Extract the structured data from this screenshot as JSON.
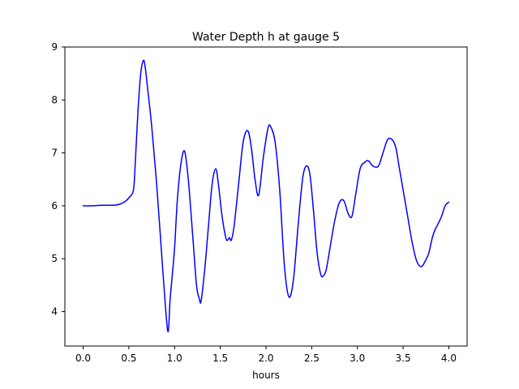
{
  "chart_data": {
    "type": "line",
    "title": "Water Depth h at gauge 5",
    "xlabel": "hours",
    "ylabel": "",
    "xlim": [
      -0.2,
      4.2
    ],
    "ylim": [
      3.35,
      9.0
    ],
    "xticks": [
      0.0,
      0.5,
      1.0,
      1.5,
      2.0,
      2.5,
      3.0,
      3.5,
      4.0
    ],
    "xtick_labels": [
      "0.0",
      "0.5",
      "1.0",
      "1.5",
      "2.0",
      "2.5",
      "3.0",
      "3.5",
      "4.0"
    ],
    "yticks": [
      4,
      5,
      6,
      7,
      8,
      9
    ],
    "ytick_labels": [
      "4",
      "5",
      "6",
      "7",
      "8",
      "9"
    ],
    "grid": false,
    "series": [
      {
        "color": "#0000ff",
        "x": [
          0.0,
          0.1,
          0.2,
          0.3,
          0.38,
          0.45,
          0.5,
          0.55,
          0.57,
          0.6,
          0.63,
          0.66,
          0.68,
          0.7,
          0.75,
          0.8,
          0.85,
          0.9,
          0.93,
          0.95,
          0.97,
          1.0,
          1.03,
          1.07,
          1.11,
          1.15,
          1.2,
          1.24,
          1.27,
          1.29,
          1.33,
          1.37,
          1.41,
          1.45,
          1.48,
          1.52,
          1.56,
          1.58,
          1.6,
          1.62,
          1.65,
          1.7,
          1.75,
          1.8,
          1.84,
          1.88,
          1.92,
          1.97,
          2.02,
          2.05,
          2.1,
          2.15,
          2.2,
          2.25,
          2.3,
          2.35,
          2.4,
          2.44,
          2.48,
          2.52,
          2.56,
          2.6,
          2.63,
          2.66,
          2.7,
          2.75,
          2.8,
          2.85,
          2.9,
          2.94,
          2.98,
          3.03,
          3.08,
          3.12,
          3.17,
          3.23,
          3.28,
          3.33,
          3.38,
          3.42,
          3.46,
          3.5,
          3.55,
          3.6,
          3.65,
          3.7,
          3.74,
          3.78,
          3.82,
          3.85,
          3.88,
          3.92,
          3.96,
          4.0
        ],
        "y": [
          6.0,
          6.0,
          6.01,
          6.01,
          6.02,
          6.07,
          6.15,
          6.3,
          6.8,
          7.8,
          8.5,
          8.75,
          8.6,
          8.3,
          7.5,
          6.5,
          5.3,
          4.1,
          3.62,
          4.2,
          4.6,
          5.2,
          6.1,
          6.8,
          7.03,
          6.5,
          5.4,
          4.5,
          4.25,
          4.2,
          4.8,
          5.6,
          6.4,
          6.7,
          6.4,
          5.8,
          5.4,
          5.35,
          5.4,
          5.35,
          5.6,
          6.4,
          7.2,
          7.42,
          7.1,
          6.5,
          6.2,
          6.9,
          7.45,
          7.5,
          7.2,
          6.3,
          4.9,
          4.28,
          4.6,
          5.6,
          6.5,
          6.75,
          6.6,
          5.9,
          5.1,
          4.7,
          4.68,
          4.8,
          5.2,
          5.7,
          6.05,
          6.1,
          5.85,
          5.8,
          6.2,
          6.7,
          6.82,
          6.85,
          6.75,
          6.75,
          7.0,
          7.25,
          7.25,
          7.1,
          6.7,
          6.3,
          5.8,
          5.3,
          4.95,
          4.85,
          4.95,
          5.1,
          5.4,
          5.55,
          5.65,
          5.8,
          6.0,
          6.07
        ]
      }
    ]
  }
}
